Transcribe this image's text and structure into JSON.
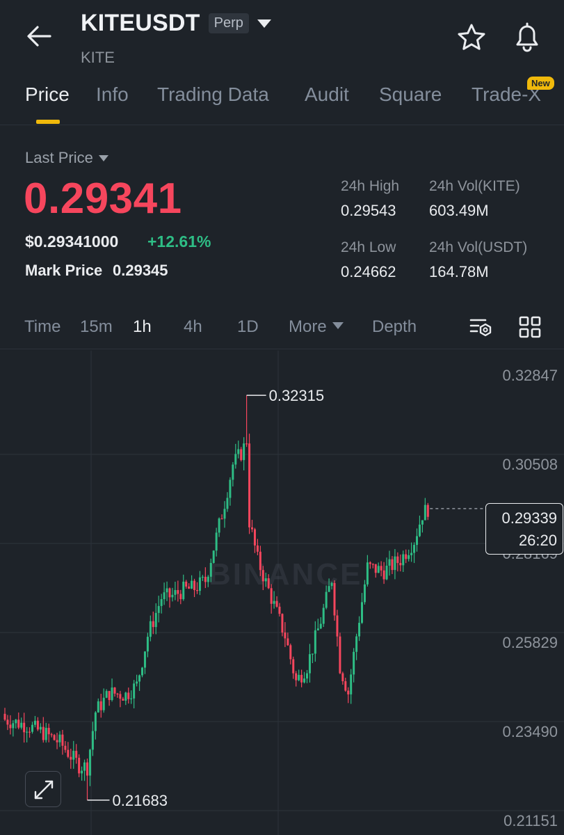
{
  "header": {
    "symbol": "KITEUSDT",
    "contract_badge": "Perp",
    "base_asset": "KITE"
  },
  "tabs": [
    {
      "label": "Price"
    },
    {
      "label": "Info"
    },
    {
      "label": "Trading Data"
    },
    {
      "label": "Audit"
    },
    {
      "label": "Square"
    },
    {
      "label": "Trade-X",
      "badge": "New"
    }
  ],
  "stats": {
    "last_price_label": "Last Price",
    "last_price": "0.29341",
    "usd_price": "$0.29341000",
    "change_pct": "+12.61%",
    "mark_price_label": "Mark Price",
    "mark_price": "0.29345",
    "high_label": "24h High",
    "high_value": "0.29543",
    "vol_base_label": "24h Vol(KITE)",
    "vol_base_value": "603.49M",
    "low_label": "24h Low",
    "low_value": "0.24662",
    "vol_quote_label": "24h Vol(USDT)",
    "vol_quote_value": "164.78M"
  },
  "intervals": {
    "items": [
      "Time",
      "15m",
      "1h",
      "4h",
      "1D",
      "More",
      "Depth"
    ],
    "selected": "1h"
  },
  "colors": {
    "up": "#2ebd85",
    "down": "#f6465d",
    "accent": "#f0b90b",
    "background": "#1e2329"
  },
  "chart_data": {
    "type": "candlestick",
    "interval": "1h",
    "y_axis_ticks": [
      "0.32847",
      "0.30508",
      "0.28169",
      "0.25829",
      "0.23490",
      "0.21151"
    ],
    "ylim": [
      0.21151,
      0.32847
    ],
    "high_marker": "0.32315",
    "low_marker": "0.21683",
    "current_price": "0.29339",
    "countdown": "26:20",
    "watermark": "BINANCE"
  }
}
